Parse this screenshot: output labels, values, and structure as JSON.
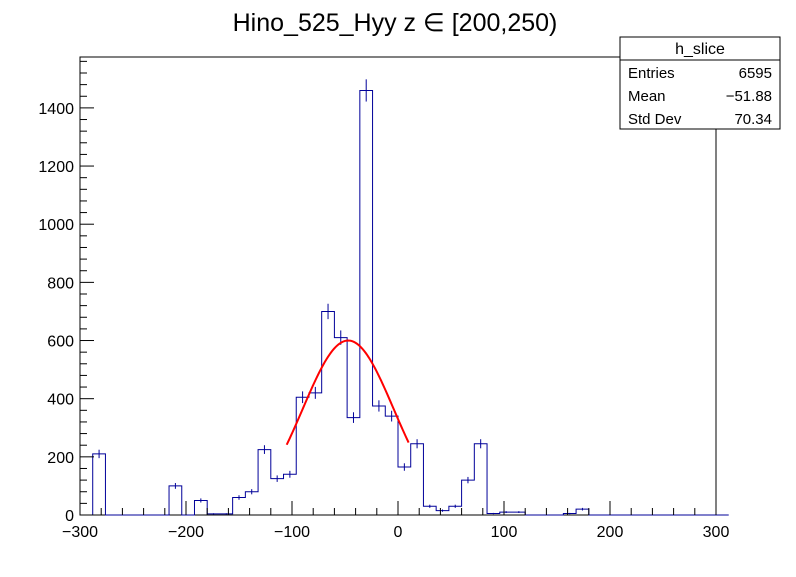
{
  "chart_data": {
    "type": "bar",
    "title": "Hino_525_Hyy z  ∈ [200,250)",
    "xlabel": "",
    "ylabel": "",
    "xlim": [
      -300,
      300
    ],
    "ylim": [
      0,
      1575
    ],
    "x_ticks": [
      -300,
      -200,
      -100,
      0,
      100,
      200,
      300
    ],
    "x_tick_labels": [
      "−300",
      "−200",
      "−100",
      "0",
      "100",
      "200",
      "300"
    ],
    "y_ticks": [
      0,
      200,
      400,
      600,
      800,
      1000,
      1200,
      1400
    ],
    "y_tick_labels": [
      "0",
      "200",
      "400",
      "600",
      "800",
      "1000",
      "1200",
      "1400"
    ],
    "bin_width": 12,
    "bin_edges_start": -288,
    "bin_values": [
      210,
      0,
      0,
      0,
      0,
      0,
      100,
      0,
      50,
      4,
      4,
      60,
      80,
      225,
      125,
      140,
      405,
      420,
      700,
      610,
      335,
      1460,
      375,
      340,
      165,
      245,
      30,
      15,
      30,
      120,
      245,
      5,
      10,
      10,
      0,
      0,
      0,
      5,
      20,
      0,
      0,
      0,
      0,
      0,
      0,
      0,
      0,
      0,
      0,
      0
    ],
    "series": [
      {
        "name": "h_slice",
        "color": "#000099"
      },
      {
        "name": "fit",
        "color": "#ff0000"
      }
    ],
    "fit": {
      "type": "gaussian",
      "amplitude": 600,
      "mean": -47,
      "sigma": 43,
      "x_range": [
        -105,
        10
      ]
    },
    "stats_box": {
      "title": "h_slice",
      "rows": [
        {
          "label": "Entries",
          "value": "6595"
        },
        {
          "label": "Mean",
          "value": "−51.88"
        },
        {
          "label": "Std Dev",
          "value": "70.34"
        }
      ]
    },
    "grid": false
  }
}
